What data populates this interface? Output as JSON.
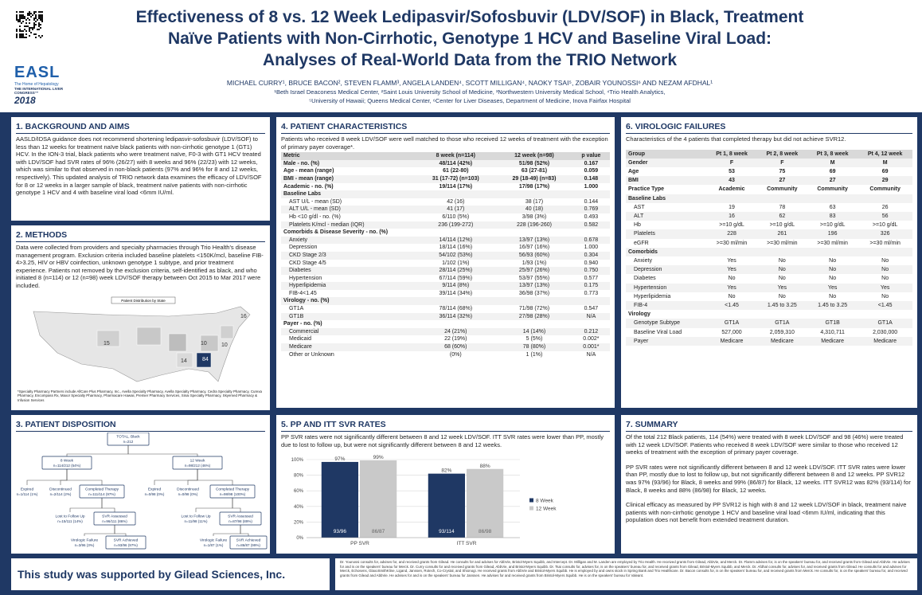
{
  "header": {
    "title": [
      "Effectiveness of 8 vs. 12 Week Ledipasvir/Sofosbuvir (LDV/SOF) in Black, Treatment",
      "Naïve Patients with Non-Cirrhotic, Genotype 1 HCV and Baseline Viral Load:",
      "Analyses of Real-World Data from the TRIO Network"
    ],
    "authors": "MICHAEL CURRY¹, BRUCE BACON², STEVEN FLAMM³, ANGELA LANDEN⁴, SCOTT MILLIGAN⁴, NAOKY TSAI⁵, ZOBAIR YOUNOSSI⁶ AND NEZAM AFDHAL¹",
    "affiliations": [
      "¹Beth Israel Deaconess Medical Center, ²Saint Louis University School of Medicine, ³Northwestern University Medical School, ⁴Trio Health Analytics,",
      "⁵University of Hawaii; Queens Medical Center, ⁶Center for Liver Diseases, Department of Medicine, Inova Fairfax Hospital"
    ],
    "logo": {
      "name": "EASL",
      "tagline": "The Home of Hepatology",
      "congress": "THE INTERNATIONAL LIVER CONGRESS™",
      "year": "2018"
    }
  },
  "background": {
    "heading": "1. BACKGROUND AND AIMS",
    "text": "AASLD/IDSA guidance does not recommend shortening ledipasvir-sofosbuvir (LDV/SOF) to less than 12 weeks for treatment naïve black patients with non-cirrhotic genotype 1 (GT1) HCV. In the ION-3 trial, black patients who were treatment naïve, F0-3 with GT1 HCV treated with LDV/SOF had SVR rates of 96% (26/27) with 8 weeks and 96% (22/23) with 12 weeks, which was similar to that observed in non-black patients (97% and 96% for 8 and 12 weeks, respectively). This updated analysis of TRIO network data examines the efficacy of LDV/SOF for 8 or 12 weeks in a larger sample of black, treatment naïve patients with non-cirrhotic genotype 1 HCV and 4 with baseline viral load <6mm IU/ml."
  },
  "methods": {
    "heading": "2. METHODS",
    "text": "Data were collected from providers and specialty pharmacies through Trio Health's disease management program. Exclusion criteria included baseline platelets <150K/mcl, baseline FIB-4>3.25, HIV or HBV coinfection, unknown genotype 1 subtype, and prior treatment experience. Patients not removed by the exclusion criteria, self-identified as black, and who initiated 8 (n=114) or 12 (n=98) week LDV/SOF therapy between Oct 2015 to Mar 2017 were included.",
    "map": {
      "title": "Patient Distribution by State",
      "labels": [
        "15",
        "16",
        "10",
        "10",
        "84",
        "14"
      ]
    },
    "footnote": "*Specialty Pharmacy Partners include AllCare Plus Pharmacy, Inc., Avella Specialty Pharmacy, Avella Specialty Pharmacy, Cedra Specialty Pharmacy, Curexa Pharmacy, Encompass Rx, Maxor Specialty Pharmacy, Pharmacare Hawaii, Premier Pharmacy Services, Sinai Specialty Pharmacy, Skyemed Pharmacy & Infusion Services"
  },
  "disposition": {
    "heading": "3. PATIENT DISPOSITION",
    "nodes": [
      [
        "TOTAL, Black",
        "n=212"
      ],
      [
        "8 Week",
        "n=114/212 (54%)"
      ],
      [
        "12 Week",
        "n=98/212 (46%)"
      ],
      [
        "Expired",
        "n=1/114 (1%)"
      ],
      [
        "Discontinued",
        "n=2/114 (2%)"
      ],
      [
        "Completed Therapy",
        "n=111/114 (97%)"
      ],
      [
        "Expired",
        "n=0/98 (0%)"
      ],
      [
        "Discontinued",
        "n=0/98 (0%)"
      ],
      [
        "Completed Therapy",
        "n=98/98 (100%)"
      ],
      [
        "Lost to Follow Up",
        "n=15/111 (14%)"
      ],
      [
        "SVR Assessed",
        "n=96/111 (86%)"
      ],
      [
        "Lost to Follow Up",
        "n=11/98 (11%)"
      ],
      [
        "SVR Assessed",
        "n=87/98 (89%)"
      ],
      [
        "Virologic Failure",
        "n=3/96 (3%)"
      ],
      [
        "SVR Achieved",
        "n=93/96 (97%)"
      ],
      [
        "Virologic Failure",
        "n=1/87 (1%)"
      ],
      [
        "SVR Achieved",
        "n=86/87 (99%)"
      ]
    ]
  },
  "characteristics": {
    "heading": "4. PATIENT CHARACTERISTICS",
    "intro": "Patients who received 8 week LDV/SOF were well matched to those who received 12 weeks of treatment with the exception of primary payer coverage*.",
    "columns": [
      "Metric",
      "8 week (n=114)",
      "12 week (n=98)",
      "p value"
    ],
    "rows": [
      [
        "Male - no. (%)",
        "48/114 (42%)",
        "51/98 (52%)",
        "0.167"
      ],
      [
        "Age - mean (range)",
        "61 (22-80)",
        "63 (27-81)",
        "0.059"
      ],
      [
        "BMI - mean (range)",
        "31 (17-72) (n=103)",
        "29 (18-49) (n=83)",
        "0.148"
      ],
      [
        "Academic - no. (%)",
        "19/114 (17%)",
        "17/98 (17%)",
        "1.000"
      ],
      [
        "Baseline Labs"
      ],
      [
        "AST U/L - mean (SD)",
        "42 (16)",
        "38 (17)",
        "0.144"
      ],
      [
        "ALT U/L - mean (SD)",
        "41 (17)",
        "40 (18)",
        "0.769"
      ],
      [
        "Hb <10 g/dl - no. (%)",
        "6/110 (5%)",
        "3/98 (3%)",
        "0.493"
      ],
      [
        "Platelets K/mcl - median (IQR)",
        "236 (199-272)",
        "228 (196-260)",
        "0.582"
      ],
      [
        "Comorbids & Disease Severity - no. (%)"
      ],
      [
        "Anxiety",
        "14/114 (12%)",
        "13/97 (13%)",
        "0.678"
      ],
      [
        "Depression",
        "18/114 (16%)",
        "16/97 (16%)",
        "1.000"
      ],
      [
        "CKD Stage 2/3",
        "54/102 (53%)",
        "56/93 (60%)",
        "0.304"
      ],
      [
        "CKD Stage 4/5",
        "1/102 (1%)",
        "1/93 (1%)",
        "0.940"
      ],
      [
        "Diabetes",
        "28/114 (25%)",
        "25/97 (26%)",
        "0.750"
      ],
      [
        "Hypertension",
        "67/114 (59%)",
        "53/97 (55%)",
        "0.577"
      ],
      [
        "Hyperlipidemia",
        "9/114 (8%)",
        "13/97 (13%)",
        "0.175"
      ],
      [
        "FIB-4<1.45",
        "39/114 (34%)",
        "36/98 (37%)",
        "0.773"
      ],
      [
        "Virology - no. (%)"
      ],
      [
        "GT1A",
        "78/114 (68%)",
        "71/98 (72%)",
        "0.547"
      ],
      [
        "GT1B",
        "36/114 (32%)",
        "27/98 (28%)",
        "N/A"
      ],
      [
        "Payer - no. (%)"
      ],
      [
        "Commercial",
        "24 (21%)",
        "14 (14%)",
        "0.212"
      ],
      [
        "Medicaid",
        "22 (19%)",
        "5 (5%)",
        "0.002*"
      ],
      [
        "Medicare",
        "68 (60%)",
        "78 (80%)",
        "0.001*"
      ],
      [
        "Other or Unknown",
        "(0%)",
        "1 (1%)",
        "N/A"
      ]
    ]
  },
  "pp_itt": {
    "heading": "5. PP AND ITT SVR RATES",
    "text": "PP SVR rates were not significantly different between 8 and 12 week LDV/SOF. ITT SVR rates were lower than PP, mostly due to lost to follow up, but were not significantly different between 8 and 12 weeks."
  },
  "failures": {
    "heading": "6. VIROLOGIC FAILURES",
    "intro": "Characteristics of the 4 patients that completed therapy but did not achieve SVR12.",
    "columns": [
      "Group",
      "Pt 1, 8 week",
      "Pt 2, 8 week",
      "Pt 3, 8 week",
      "Pt 4, 12 week"
    ],
    "rows": [
      [
        "Gender",
        "F",
        "F",
        "M",
        "M"
      ],
      [
        "Age",
        "53",
        "75",
        "69",
        "69"
      ],
      [
        "BMI",
        "43",
        "27",
        "27",
        "29"
      ],
      [
        "Practice Type",
        "Academic",
        "Community",
        "Community",
        "Community"
      ],
      [
        "Baseline Labs"
      ],
      [
        "AST",
        "19",
        "78",
        "63",
        "26"
      ],
      [
        "ALT",
        "16",
        "62",
        "83",
        "56"
      ],
      [
        "Hb",
        ">=10 g/dL",
        ">=10 g/dL",
        ">=10 g/dL",
        ">=10 g/dL"
      ],
      [
        "Platelets",
        "228",
        "261",
        "196",
        "326"
      ],
      [
        "eGFR",
        ">=30 ml/min",
        ">=30 ml/min",
        ">=30 ml/min",
        ">=30 ml/min"
      ],
      [
        "Comorbids"
      ],
      [
        "Anxiety",
        "Yes",
        "No",
        "No",
        "No"
      ],
      [
        "Depression",
        "Yes",
        "No",
        "No",
        "No"
      ],
      [
        "Diabetes",
        "No",
        "No",
        "No",
        "No"
      ],
      [
        "Hypertension",
        "Yes",
        "Yes",
        "Yes",
        "Yes"
      ],
      [
        "Hyperlipidemia",
        "No",
        "No",
        "No",
        "No"
      ],
      [
        "FIB-4",
        "<1.45",
        "1.45 to 3.25",
        "1.45 to 3.25",
        "<1.45"
      ],
      [
        "Virology"
      ],
      [
        "Genotype Subtype",
        "GT1A",
        "GT1A",
        "GT1B",
        "GT1A"
      ],
      [
        "Baseline Viral Load",
        "527,000",
        "2,059,310",
        "4,310,711",
        "2,030,000"
      ],
      [
        "Payer",
        "Medicare",
        "Medicare",
        "Medicare",
        "Medicare"
      ]
    ]
  },
  "summary": {
    "heading": "7. SUMMARY",
    "paragraphs": [
      "Of the total 212 Black patients, 114 (54%) were treated with 8 week LDV/SOF and 98 (46%) were treated with 12 week LDV/SOF. Patients who received 8 week LDV/SOF were similar to those who received 12 weeks of treatment with the exception of primary payer coverage.",
      "PP SVR rates were not significantly different between 8 and 12 week LDV/SOF. ITT SVR rates were lower than PP, mostly due to lost to follow up, but not significantly different between 8 and 12 weeks. PP SVR12 was 97% (93/96) for Black, 8 weeks and 99% (86/87) for Black, 12 weeks. ITT SVR12 was 82% (93/114) for Black, 8 weeks and 88% (86/98) for Black, 12 weeks.",
      "Clinical efficacy as measured by PP SVR12 is high with 8 and 12 week LDV/SOF in black, treatment naive patients with non-cirrhotic genotype 1 HCV and baseline viral load <6mm IU/ml, indicating that this population does not benefit from extended treatment duration."
    ]
  },
  "footer": {
    "support": "This study was supported by Gilead Sciences, Inc.",
    "disclosure": "Dr. Younossi consults for, advises for, and received grants from Gilead. He consults for and advises for AbbVie, Bristol-Myers Squibb, and Intercept. Dr. Milligan and M. Landen are employed by Trio Health. He received grants from Gilead, AbbVie, and Merck. Dr. Flamm advises for, is on the speakers' bureau for, and received grants from Gilead and AbbVie. He advises for and is on the speakers' bureau for Merck. Dr. Curry consults for and received grants from Gilead, AbbVie, and Bristol-Myers Squibb. Dr. Tsai consults for, advises for, is on the speakers' bureau for, and received grants from Gilead, Bristol-Myers Squibb, and Merck. Dr. Afdhal consults for, advises for, and received grants from Gilead. He consults for and advises for Merck, Echosens, GlaxoSmithKline, Ligand, Janssen, Rotech, Co-Crystal, and Shionogi. He received grants from AbbVie and Bristol-Myers Squibb. He is employed by and owns stock in Spring Bank and Trio Healthcare. Dr. Bacon consults for, is on the speakers' bureau for, and received grants from Merck. He consults for, is on the speakers' bureau for, and received grants from Gilead and AbbVie. He advises for and is on the speakers' bureau for Janssen. He advises for and received grants from Bristol-Myers Squibb. He is on the speakers' bureau for Valeant."
  },
  "chart_data": {
    "type": "bar",
    "categories": [
      "PP SVR",
      "ITT SVR"
    ],
    "series": [
      {
        "name": "8 Week",
        "color": "#1f3864",
        "values": [
          97,
          82
        ],
        "value_labels": [
          "97%",
          "82%"
        ],
        "counts": [
          "93/96",
          "93/114"
        ]
      },
      {
        "name": "12 Week",
        "color": "#c9c9c9",
        "values": [
          99,
          88
        ],
        "value_labels": [
          "99%",
          "88%"
        ],
        "counts": [
          "86/87",
          "86/98"
        ]
      }
    ],
    "ylim": [
      0,
      100
    ],
    "yticks": [
      {
        "value": 0,
        "label": "0%"
      },
      {
        "value": 20,
        "label": "20%"
      },
      {
        "value": 40,
        "label": "40%"
      },
      {
        "value": 60,
        "label": "60%"
      },
      {
        "value": 80,
        "label": "80%"
      },
      {
        "value": 100,
        "label": "100%"
      }
    ],
    "grid": true,
    "legend": "right"
  }
}
